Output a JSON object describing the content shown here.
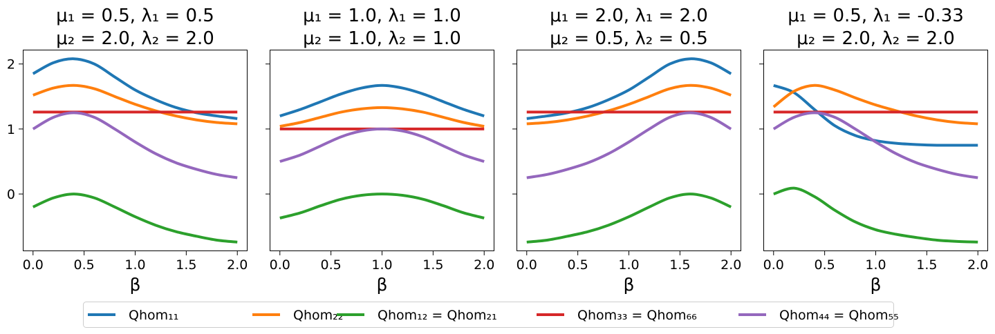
{
  "chart_data": {
    "type": "line",
    "x_label": "β",
    "xlim": [
      -0.1,
      2.1
    ],
    "ylim": [
      -0.88,
      2.22
    ],
    "x_ticks": [
      "0.0",
      "0.5",
      "1.0",
      "1.5",
      "2.0"
    ],
    "y_ticks": [
      "0",
      "1",
      "2"
    ],
    "legend_position": "bottom",
    "legend": [
      {
        "key": "q11",
        "label": "Qhom₁₁",
        "color": "#1f77b4"
      },
      {
        "key": "q22",
        "label": "Qhom₂₂",
        "color": "#ff7f0e"
      },
      {
        "key": "q12",
        "label": "Qhom₁₂ = Qhom₂₁",
        "color": "#2ca02c"
      },
      {
        "key": "q33",
        "label": "Qhom₃₃ = Qhom₆₆",
        "color": "#d62728"
      },
      {
        "key": "q44",
        "label": "Qhom₄₄ = Qhom₅₅",
        "color": "#9467bd"
      }
    ],
    "x": [
      0.0,
      0.2,
      0.4,
      0.6,
      0.8,
      1.0,
      1.2,
      1.4,
      1.6,
      1.8,
      2.0
    ],
    "panels": [
      {
        "title_line1": "μ₁ = 0.5, λ₁ = 0.5",
        "title_line2": "μ₂ = 2.0, λ₂ = 2.0",
        "series": {
          "q11": [
            1.85,
            2.02,
            2.08,
            2.0,
            1.8,
            1.6,
            1.45,
            1.33,
            1.25,
            1.2,
            1.16
          ],
          "q22": [
            1.52,
            1.63,
            1.67,
            1.62,
            1.5,
            1.38,
            1.28,
            1.2,
            1.14,
            1.1,
            1.08
          ],
          "q12": [
            -0.2,
            -0.06,
            0.0,
            -0.06,
            -0.2,
            -0.35,
            -0.48,
            -0.58,
            -0.65,
            -0.71,
            -0.74
          ],
          "q33": [
            1.26,
            1.26,
            1.26,
            1.26,
            1.26,
            1.26,
            1.26,
            1.26,
            1.26,
            1.26,
            1.26
          ],
          "q44": [
            1.0,
            1.18,
            1.25,
            1.18,
            1.0,
            0.8,
            0.62,
            0.48,
            0.38,
            0.3,
            0.25
          ]
        }
      },
      {
        "title_line1": "μ₁ = 1.0, λ₁ = 1.0",
        "title_line2": "μ₂ = 1.0, λ₂ = 1.0",
        "series": {
          "q11": [
            1.2,
            1.3,
            1.42,
            1.54,
            1.63,
            1.67,
            1.63,
            1.54,
            1.42,
            1.3,
            1.2
          ],
          "q22": [
            1.04,
            1.1,
            1.18,
            1.26,
            1.31,
            1.33,
            1.31,
            1.26,
            1.18,
            1.1,
            1.04
          ],
          "q12": [
            -0.37,
            -0.29,
            -0.18,
            -0.08,
            -0.02,
            0.0,
            -0.02,
            -0.08,
            -0.18,
            -0.29,
            -0.37
          ],
          "q33": [
            1.0,
            1.0,
            1.0,
            1.0,
            1.0,
            1.0,
            1.0,
            1.0,
            1.0,
            1.0,
            1.0
          ],
          "q44": [
            0.5,
            0.6,
            0.74,
            0.88,
            0.97,
            1.0,
            0.97,
            0.88,
            0.74,
            0.6,
            0.5
          ]
        }
      },
      {
        "title_line1": "μ₁ = 2.0, λ₁ = 2.0",
        "title_line2": "μ₂ = 0.5, λ₂ = 0.5",
        "series": {
          "q11": [
            1.16,
            1.2,
            1.25,
            1.33,
            1.45,
            1.6,
            1.8,
            2.0,
            2.08,
            2.02,
            1.85
          ],
          "q22": [
            1.08,
            1.1,
            1.14,
            1.2,
            1.28,
            1.38,
            1.5,
            1.62,
            1.67,
            1.63,
            1.52
          ],
          "q12": [
            -0.74,
            -0.71,
            -0.65,
            -0.58,
            -0.48,
            -0.35,
            -0.2,
            -0.06,
            0.0,
            -0.06,
            -0.2
          ],
          "q33": [
            1.26,
            1.26,
            1.26,
            1.26,
            1.26,
            1.26,
            1.26,
            1.26,
            1.26,
            1.26,
            1.26
          ],
          "q44": [
            0.25,
            0.3,
            0.38,
            0.48,
            0.62,
            0.8,
            1.0,
            1.18,
            1.25,
            1.18,
            1.0
          ]
        }
      },
      {
        "title_line1": "μ₁ = 0.5, λ₁ = -0.33",
        "title_line2": "μ₂ = 2.0, λ₂ = 2.0",
        "series": {
          "q11": [
            1.67,
            1.56,
            1.3,
            1.05,
            0.9,
            0.82,
            0.78,
            0.76,
            0.75,
            0.75,
            0.75
          ],
          "q22": [
            1.34,
            1.58,
            1.67,
            1.6,
            1.48,
            1.37,
            1.28,
            1.2,
            1.14,
            1.1,
            1.08
          ],
          "q12": [
            0.0,
            0.09,
            -0.04,
            -0.25,
            -0.43,
            -0.55,
            -0.62,
            -0.67,
            -0.71,
            -0.73,
            -0.74
          ],
          "q33": [
            1.26,
            1.26,
            1.26,
            1.26,
            1.26,
            1.26,
            1.26,
            1.26,
            1.26,
            1.26,
            1.26
          ],
          "q44": [
            1.0,
            1.18,
            1.25,
            1.18,
            1.0,
            0.8,
            0.62,
            0.48,
            0.38,
            0.3,
            0.25
          ]
        }
      }
    ]
  }
}
